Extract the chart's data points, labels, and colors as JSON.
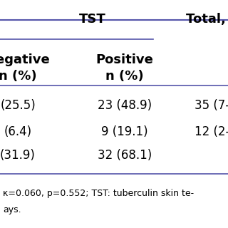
{
  "rows": [
    [
      "(25.5)",
      "23 (48.9)",
      "35 (7-"
    ],
    [
      "(6.4)",
      "9 (19.1)",
      "12 (2-"
    ],
    [
      "(31.9)",
      "32 (68.1)",
      ""
    ]
  ],
  "footnote1": "κ=0.060, p=0.552; TST: tuberculin skin te-",
  "footnote2": "ays.",
  "bg_color": "#ffffff",
  "text_color": "#000000",
  "line_color": "#5555aa",
  "tst_header": "TST",
  "total_header": "Total, n",
  "neg_header1": "Negative",
  "neg_header2": "n (%)",
  "pos_header1": "Positive",
  "pos_header2": "n (%)",
  "header_fontsize": 13,
  "body_fontsize": 12,
  "footnote_fontsize": 9,
  "fig_width": 3.2,
  "fig_height": 3.2,
  "dpi": 100
}
